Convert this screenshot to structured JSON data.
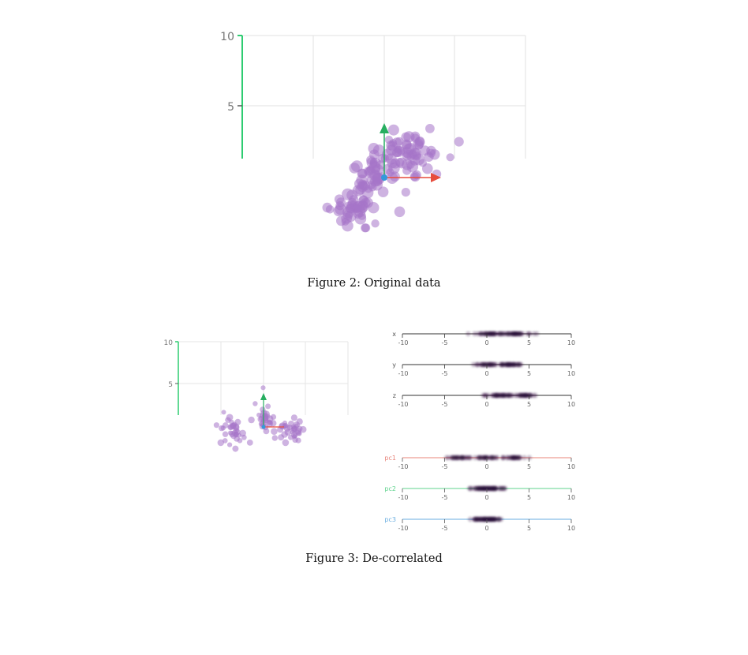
{
  "figures": [
    {
      "caption": "Figure 2: Original data",
      "plot": {
        "y_ticks": [
          "10",
          "5"
        ],
        "colors": {
          "points": "#a574c9",
          "axis_y": "#2ecc71",
          "arrow_x": "#e74c3c",
          "arrow_y": "#27ae60",
          "origin": "#3498db",
          "grid": "#dddddd"
        }
      }
    },
    {
      "caption": "Figure 3: De-correlated",
      "plot": {
        "y_ticks": [
          "10",
          "5"
        ],
        "colors": {
          "points": "#a574c9",
          "axis_y": "#2ecc71",
          "arrow_x": "#e74c3c",
          "arrow_y": "#27ae60",
          "origin": "#3498db",
          "grid": "#dddddd"
        }
      },
      "strips": [
        {
          "label": "x",
          "color": "#333333",
          "ticks": [
            "-10",
            "-5",
            "0",
            "5",
            "10"
          ]
        },
        {
          "label": "y",
          "color": "#333333",
          "ticks": [
            "-10",
            "-5",
            "0",
            "5",
            "10"
          ]
        },
        {
          "label": "z",
          "color": "#333333",
          "ticks": [
            "-10",
            "-5",
            "0",
            "5",
            "10"
          ]
        },
        {
          "label": "pc1",
          "color": "#e8847a",
          "ticks": [
            "-10",
            "-5",
            "0",
            "5",
            "10"
          ]
        },
        {
          "label": "pc2",
          "color": "#5fd38d",
          "ticks": [
            "-10",
            "-5",
            "0",
            "5",
            "10"
          ]
        },
        {
          "label": "pc3",
          "color": "#6aaee0",
          "ticks": [
            "-10",
            "-5",
            "0",
            "5",
            "10"
          ]
        }
      ]
    }
  ]
}
